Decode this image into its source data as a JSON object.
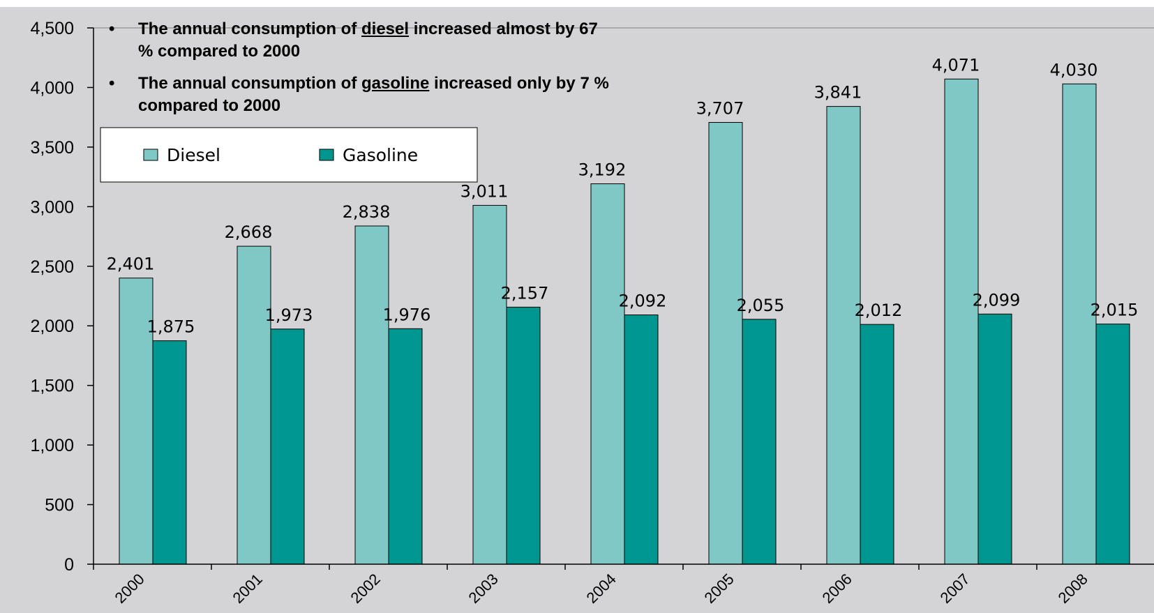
{
  "chart_data": {
    "type": "bar",
    "categories": [
      "2000",
      "2001",
      "2002",
      "2003",
      "2004",
      "2005",
      "2006",
      "2007",
      "2008"
    ],
    "series": [
      {
        "name": "Diesel",
        "color": "#80c8c5",
        "values": [
          2401,
          2668,
          2838,
          3011,
          3192,
          3707,
          3841,
          4071,
          4030
        ],
        "labels": [
          "2,401",
          "2,668",
          "2,838",
          "3,011",
          "3,192",
          "3,707",
          "3,841",
          "4,071",
          "4,030"
        ]
      },
      {
        "name": "Gasoline",
        "color": "#009690",
        "values": [
          1875,
          1973,
          1976,
          2157,
          2092,
          2055,
          2012,
          2099,
          2015
        ],
        "labels": [
          "1,875",
          "1,973",
          "1,976",
          "2,157",
          "2,092",
          "2,055",
          "2,012",
          "2,099",
          "2,015"
        ]
      }
    ],
    "ylim": [
      0,
      4500
    ],
    "yticks": [
      0,
      500,
      1000,
      1500,
      2000,
      2500,
      3000,
      3500,
      4000,
      4500
    ],
    "ytick_labels": [
      "0",
      "500",
      "1,000",
      "1,500",
      "2,000",
      "2,500",
      "3,000",
      "3,500",
      "4,000",
      "4,500"
    ],
    "legend_position": "top-left",
    "plot_background": "#d4d4d6",
    "annotations": [
      {
        "before": "The annual consumption of ",
        "keyword": "diesel",
        "line1_after": " increased almost by 67",
        "line2": "% compared to 2000"
      },
      {
        "before": "The annual consumption of ",
        "keyword": "gasoline",
        "line1_after": " increased only by 7 %",
        "line2": "compared to 2000"
      }
    ]
  }
}
